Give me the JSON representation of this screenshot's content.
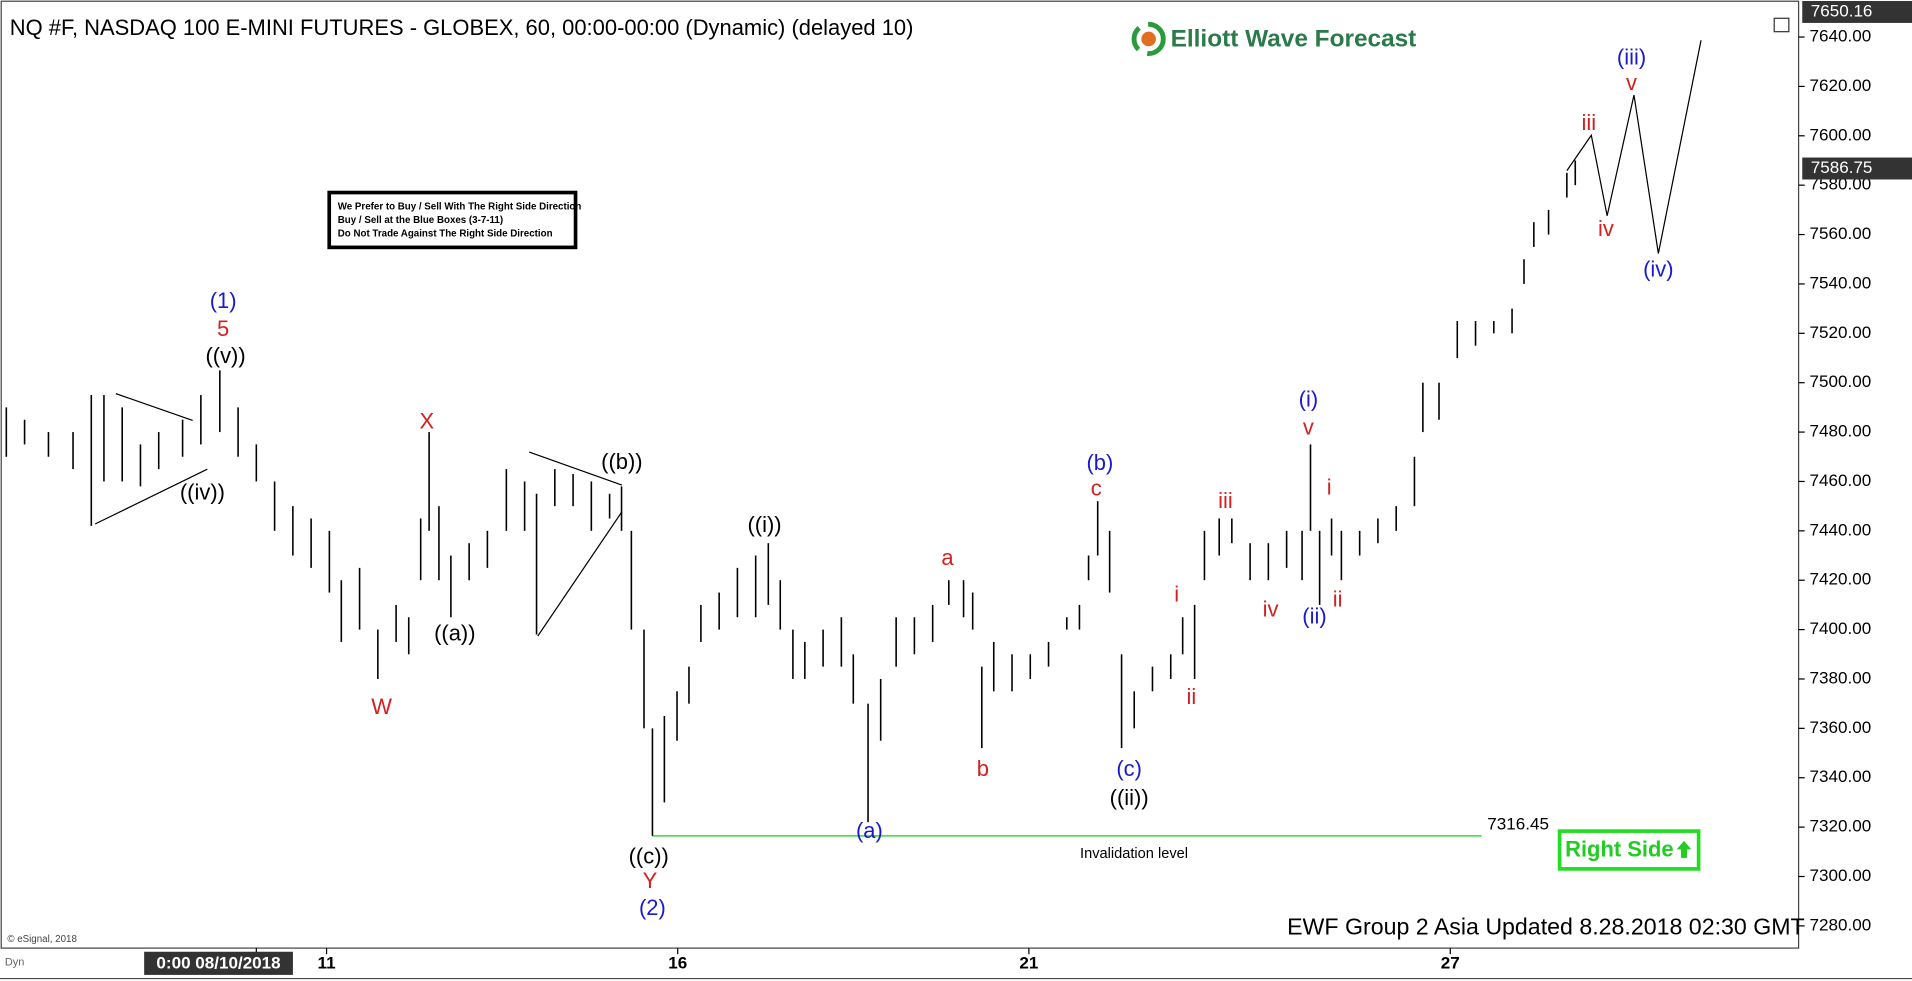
{
  "chart_data": {
    "type": "ohlc",
    "title": "NQ #F, NASDAQ 100 E-MINI FUTURES - GLOBEX, 60, 00:00-00:00 (Dynamic) (delayed 10)",
    "logo": "Elliott Wave Forecast",
    "note": [
      "We Prefer to Buy / Sell With The Right Side Direction",
      "Buy / Sell at the Blue Boxes (3-7-11)",
      "Do Not Trade Against The Right Side Direction"
    ],
    "badge": "Right Side",
    "footer": "EWF Group 2 Asia Updated 8.28.2018 02:30 GMT",
    "copyright": "© eSignal, 2018",
    "mode": "Dyn",
    "color": "#000000",
    "x": [
      6.44,
      6.7,
      7.04,
      7.39,
      7.65,
      7.83,
      8.09,
      8.35,
      8.61,
      8.95,
      9.21,
      9.48,
      9.74,
      10.0,
      10.26,
      10.52,
      10.78,
      11.04,
      11.21,
      11.47,
      11.73,
      11.99,
      12.17,
      12.34,
      12.46,
      12.6,
      12.77,
      13.03,
      13.29,
      13.56,
      13.82,
      13.99,
      14.25,
      14.51,
      14.77,
      15.03,
      15.2,
      15.34,
      15.52,
      15.64,
      15.81,
      15.99,
      16.16,
      16.33,
      16.59,
      16.85,
      17.11,
      17.29,
      17.46,
      17.64,
      17.81,
      18.07,
      18.33,
      18.5,
      18.71,
      18.89,
      19.11,
      19.37,
      19.63,
      19.86,
      20.07,
      20.2,
      20.33,
      20.5,
      20.76,
      21.02,
      21.28,
      21.54,
      21.72,
      21.85,
      21.98,
      22.15,
      22.32,
      22.5,
      22.76,
      23.02,
      23.19,
      23.36,
      23.5,
      23.71,
      23.89,
      24.15,
      24.41,
      24.67,
      24.89,
      25.01,
      25.14,
      25.31,
      25.45,
      25.71,
      25.97,
      26.23,
      26.49,
      26.61,
      26.84,
      27.1,
      27.36,
      27.62,
      27.88,
      28.05,
      28.19,
      28.4,
      28.66,
      28.78
    ],
    "high": [
      7490,
      7485,
      7480,
      7480,
      7495,
      7495,
      7490,
      7475,
      7480,
      7485,
      7495,
      7505,
      7490,
      7475,
      7460,
      7450,
      7445,
      7440,
      7420,
      7425,
      7400,
      7410,
      7405,
      7445,
      7480,
      7450,
      7430,
      7435,
      7440,
      7465,
      7460,
      7455,
      7465,
      7463,
      7460,
      7455,
      7458,
      7440,
      7400,
      7360,
      7365,
      7375,
      7385,
      7410,
      7415,
      7425,
      7430,
      7435,
      7420,
      7400,
      7395,
      7400,
      7405,
      7390,
      7370,
      7380,
      7405,
      7405,
      7410,
      7420,
      7420,
      7415,
      7385,
      7395,
      7390,
      7390,
      7395,
      7405,
      7410,
      7430,
      7452,
      7440,
      7390,
      7375,
      7385,
      7390,
      7405,
      7410,
      7440,
      7445,
      7445,
      7435,
      7435,
      7440,
      7440,
      7475,
      7440,
      7445,
      7440,
      7440,
      7445,
      7450,
      7470,
      7500,
      7500,
      7525,
      7525,
      7525,
      7530,
      7550,
      7565,
      7570,
      7585,
      7590
    ],
    "low": [
      7470,
      7475,
      7470,
      7465,
      7442,
      7460,
      7460,
      7458,
      7465,
      7470,
      7475,
      7480,
      7470,
      7460,
      7440,
      7430,
      7425,
      7415,
      7395,
      7400,
      7380,
      7395,
      7390,
      7420,
      7440,
      7420,
      7405,
      7420,
      7425,
      7440,
      7440,
      7398,
      7450,
      7450,
      7440,
      7445,
      7440,
      7400,
      7360,
      7316.45,
      7330,
      7355,
      7370,
      7395,
      7400,
      7405,
      7405,
      7410,
      7400,
      7380,
      7380,
      7385,
      7385,
      7370,
      7322,
      7355,
      7385,
      7390,
      7395,
      7410,
      7405,
      7400,
      7352,
      7375,
      7375,
      7380,
      7385,
      7400,
      7400,
      7420,
      7430,
      7415,
      7352,
      7360,
      7375,
      7380,
      7390,
      7380,
      7420,
      7430,
      7435,
      7420,
      7420,
      7425,
      7420,
      7440,
      7410,
      7430,
      7420,
      7430,
      7435,
      7440,
      7450,
      7480,
      7485,
      7510,
      7515,
      7520,
      7520,
      7540,
      7555,
      7560,
      7575,
      7580
    ],
    "xlim": [
      6.35,
      31.96
    ],
    "ylim": [
      7271,
      7655
    ],
    "xticks": [
      {
        "value": 10,
        "label": "0:00 08/10/2018"
      },
      11,
      16,
      21,
      27
    ],
    "yticks": [
      {
        "value": 7280,
        "label": "7280.00"
      },
      {
        "value": 7300,
        "label": "7300.00"
      },
      {
        "value": 7320,
        "label": "7320.00"
      },
      {
        "value": 7340,
        "label": "7340.00"
      },
      {
        "value": 7360,
        "label": "7360.00"
      },
      {
        "value": 7380,
        "label": "7380.00"
      },
      {
        "value": 7400,
        "label": "7400.00"
      },
      {
        "value": 7420,
        "label": "7420.00"
      },
      {
        "value": 7440,
        "label": "7440.00"
      },
      {
        "value": 7460,
        "label": "7460.00"
      },
      {
        "value": 7480,
        "label": "7480.00"
      },
      {
        "value": 7500,
        "label": "7500.00"
      },
      {
        "value": 7520,
        "label": "7520.00"
      },
      {
        "value": 7540,
        "label": "7540.00"
      },
      {
        "value": 7560,
        "label": "7560.00"
      },
      {
        "value": 7580,
        "label": "7580.00"
      },
      {
        "value": 7600,
        "label": "7600.00"
      },
      {
        "value": 7620,
        "label": "7620.00"
      },
      {
        "value": 7640,
        "label": "7640.00"
      }
    ],
    "top_price": 7650.16,
    "last_price": 7586.75,
    "invalidation": {
      "value": 7316.45,
      "label": "Invalidation level",
      "color": "#33dd33"
    },
    "wave_labels": [
      {
        "text": "(1)",
        "color": "#1a1acc"
      },
      {
        "text": "5",
        "color": "#d42020"
      },
      {
        "text": "((v))",
        "color": "#000000"
      },
      {
        "text": "((iv))",
        "color": "#000000"
      },
      {
        "text": "X",
        "color": "#d42020"
      },
      {
        "text": "W",
        "color": "#d42020"
      },
      {
        "text": "((a))",
        "color": "#000000"
      },
      {
        "text": "((b))",
        "color": "#000000"
      },
      {
        "text": "((c))",
        "color": "#000000"
      },
      {
        "text": "Y",
        "color": "#d42020"
      },
      {
        "text": "(2)",
        "color": "#1a1acc"
      },
      {
        "text": "((i))",
        "color": "#000000"
      },
      {
        "text": "(a)",
        "color": "#1a1acc"
      },
      {
        "text": "a",
        "color": "#d42020"
      },
      {
        "text": "b",
        "color": "#d42020"
      },
      {
        "text": "(b)",
        "color": "#1a1acc"
      },
      {
        "text": "c",
        "color": "#d42020"
      },
      {
        "text": "(c)",
        "color": "#1a1acc"
      },
      {
        "text": "((ii))",
        "color": "#000000"
      },
      {
        "text": "i",
        "color": "#d42020"
      },
      {
        "text": "ii",
        "color": "#d42020"
      },
      {
        "text": "iii",
        "color": "#d42020"
      },
      {
        "text": "iv",
        "color": "#d42020"
      },
      {
        "text": "(i)",
        "color": "#1a1acc"
      },
      {
        "text": "v",
        "color": "#d42020"
      },
      {
        "text": "(ii)",
        "color": "#1a1acc"
      },
      {
        "text": "i",
        "color": "#d42020"
      },
      {
        "text": "ii",
        "color": "#d42020"
      },
      {
        "text": "iii",
        "color": "#d42020"
      },
      {
        "text": "iv",
        "color": "#d42020"
      },
      {
        "text": "(iii)",
        "color": "#1a1acc"
      },
      {
        "text": "v",
        "color": "#d42020"
      },
      {
        "text": "(iv)",
        "color": "#1a1acc"
      }
    ]
  }
}
